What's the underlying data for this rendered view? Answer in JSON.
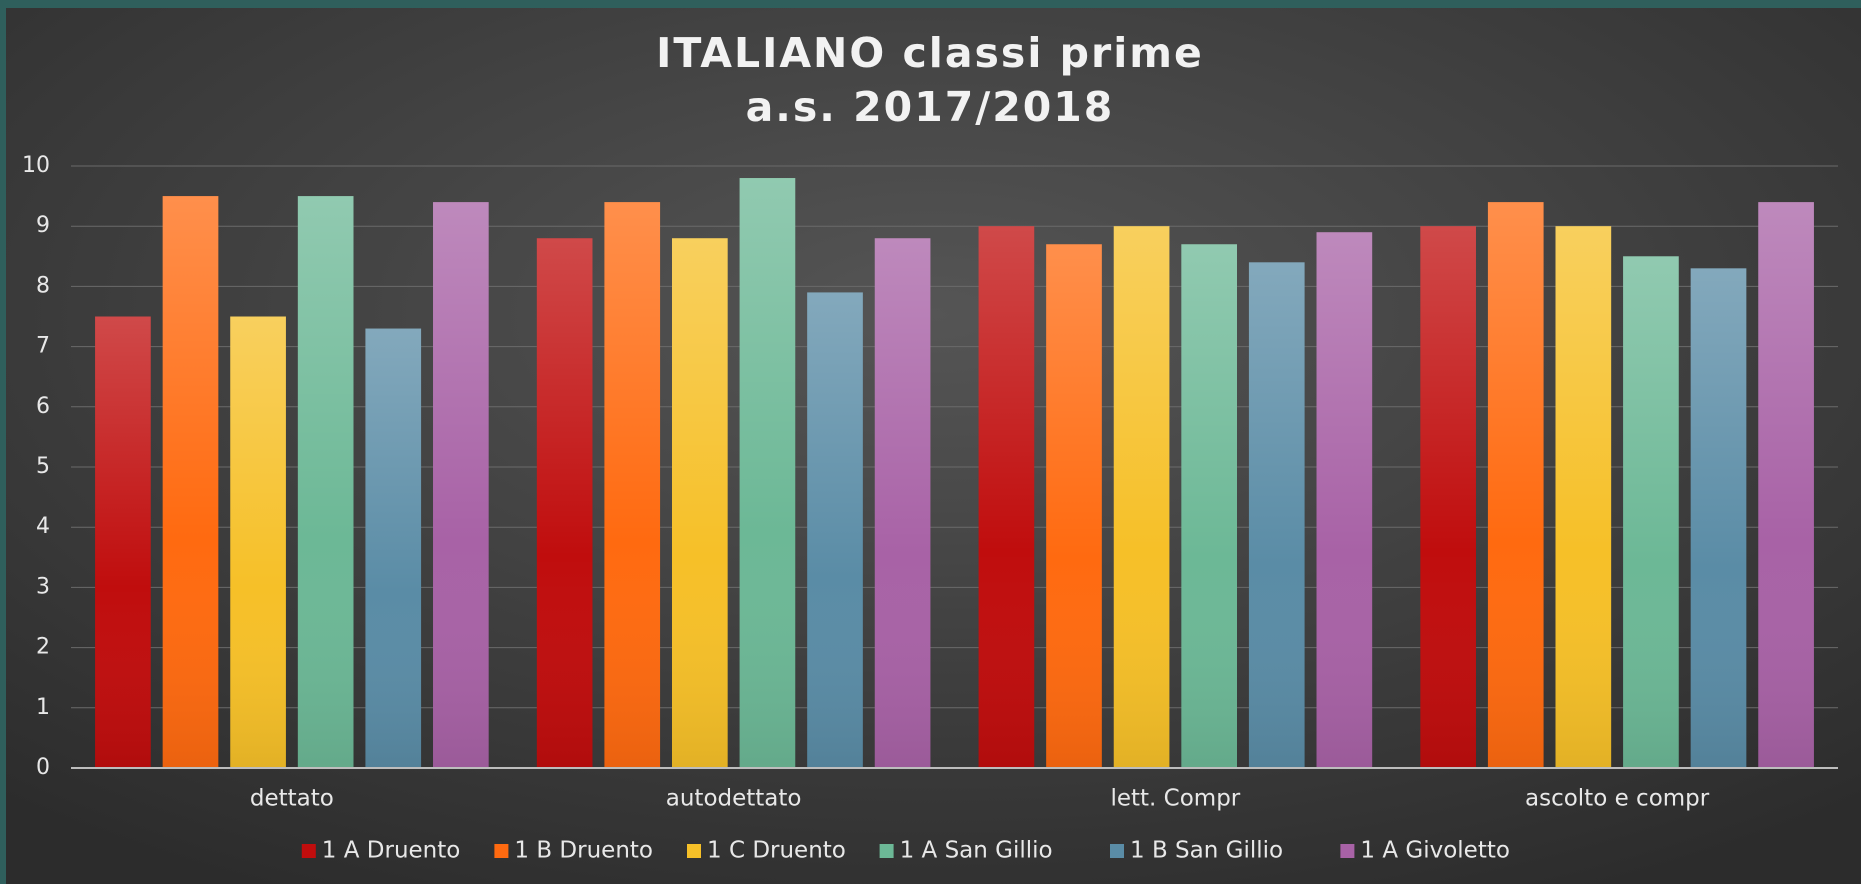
{
  "chart_data": {
    "type": "bar",
    "title": "ITALIANO classi prime",
    "subtitle": "a.s. 2017/2018",
    "categories": [
      "dettato",
      "autodettato",
      "lett. Compr",
      "ascolto e compr"
    ],
    "series": [
      {
        "name": "1 A Druento",
        "color": "#c00d0d",
        "values": [
          7.5,
          8.8,
          9.0,
          9.0
        ]
      },
      {
        "name": "1 B Druento",
        "color": "#ff6a10",
        "values": [
          9.5,
          9.4,
          8.7,
          9.4
        ]
      },
      {
        "name": "1 C Druento",
        "color": "#f6c028",
        "values": [
          7.5,
          8.8,
          9.0,
          9.0
        ]
      },
      {
        "name": "1 A San Gillio",
        "color": "#6cb896",
        "values": [
          9.5,
          9.8,
          8.7,
          8.5
        ]
      },
      {
        "name": "1 B San Gillio",
        "color": "#5a8ca6",
        "values": [
          7.3,
          7.9,
          8.4,
          8.3
        ]
      },
      {
        "name": "1 A Givoletto",
        "color": "#a862a6",
        "values": [
          9.4,
          8.8,
          8.9,
          9.4
        ]
      }
    ],
    "ylim": [
      0,
      10
    ],
    "yticks": [
      0,
      1,
      2,
      3,
      4,
      5,
      6,
      7,
      8,
      9,
      10
    ],
    "grid": true,
    "legend": "bottom"
  }
}
